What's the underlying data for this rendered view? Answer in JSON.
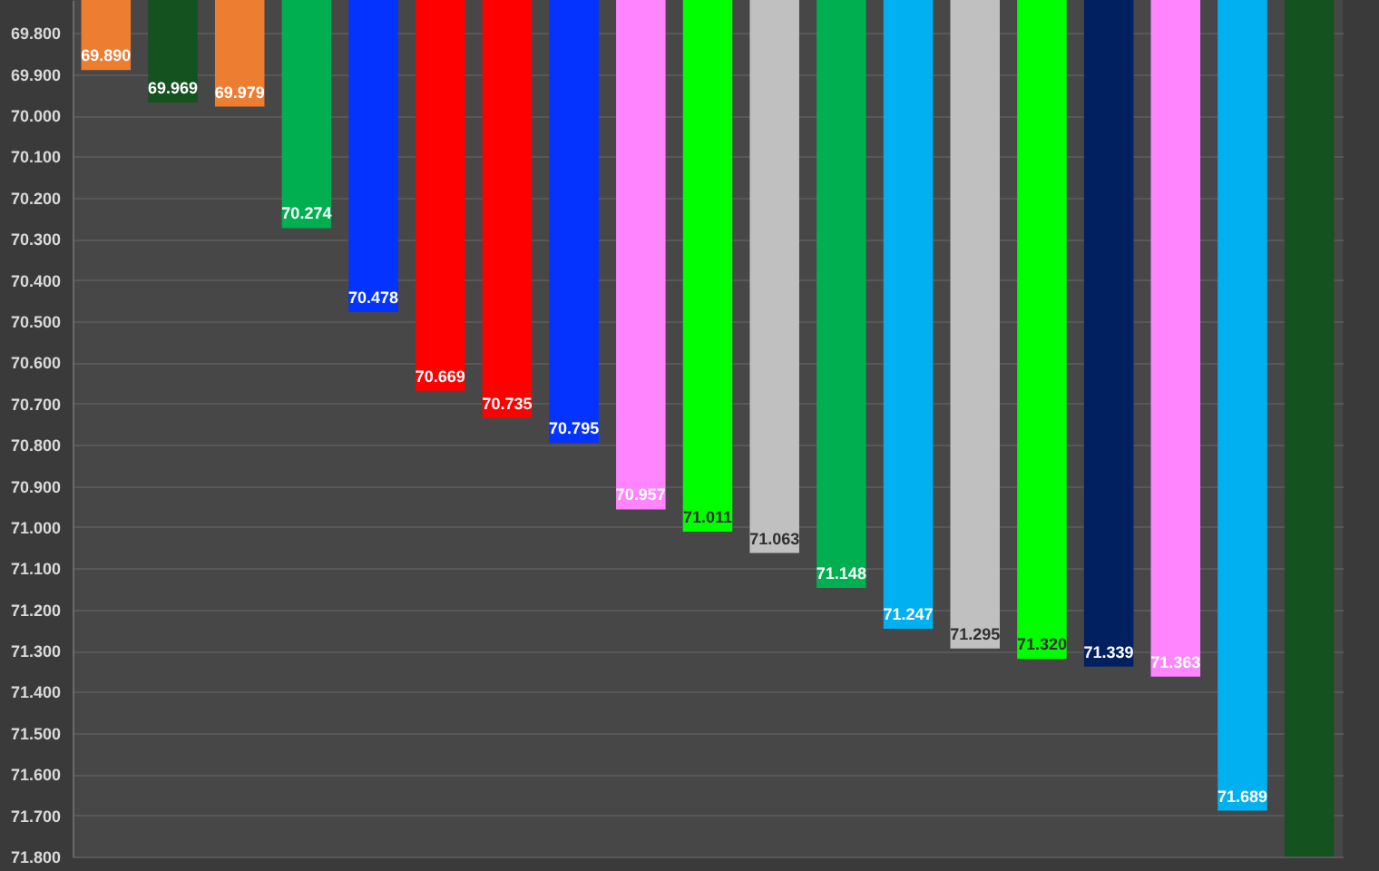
{
  "chart_data": {
    "type": "bar",
    "categories": [
      null,
      null,
      null,
      null,
      null,
      null,
      null,
      null,
      null,
      null,
      null,
      null,
      null,
      null,
      null,
      null,
      null,
      null,
      null
    ],
    "values": [
      69.89,
      69.969,
      69.979,
      70.274,
      70.478,
      70.669,
      70.735,
      70.795,
      70.957,
      71.011,
      71.063,
      71.148,
      71.247,
      71.295,
      71.32,
      71.339,
      71.363,
      71.689,
      71.8
    ],
    "colors": [
      "#ed7d31",
      "#145220",
      "#ed7d31",
      "#00b050",
      "#0433ff",
      "#ff0000",
      "#ff0000",
      "#0433ff",
      "#ff85ff",
      "#00ff00",
      "#c0c0c0",
      "#00b050",
      "#00b0f0",
      "#c0c0c0",
      "#00ff00",
      "#002060",
      "#ff85ff",
      "#00b0f0",
      "#145220"
    ],
    "value_labels": [
      "69.890",
      "69.969",
      "69.979",
      "70.274",
      "70.478",
      "70.669",
      "70.735",
      "70.795",
      "70.957",
      "71.011",
      "71.063",
      "71.148",
      "71.247",
      "71.295",
      "71.320",
      "71.339",
      "71.363",
      "71.689",
      null
    ],
    "ylim": [
      71.8,
      69.72
    ],
    "yticks": [
      {
        "value": 69.8,
        "label": "69.800"
      },
      {
        "value": 69.9,
        "label": "69.900"
      },
      {
        "value": 70.0,
        "label": "70.000"
      },
      {
        "value": 70.1,
        "label": "70.100"
      },
      {
        "value": 70.2,
        "label": "70.200"
      },
      {
        "value": 70.3,
        "label": "70.300"
      },
      {
        "value": 70.4,
        "label": "70.400"
      },
      {
        "value": 70.5,
        "label": "70.500"
      },
      {
        "value": 70.6,
        "label": "70.600"
      },
      {
        "value": 70.7,
        "label": "70.700"
      },
      {
        "value": 70.8,
        "label": "70.800"
      },
      {
        "value": 70.9,
        "label": "70.900"
      },
      {
        "value": 71.0,
        "label": "71.000"
      },
      {
        "value": 71.1,
        "label": "71.100"
      },
      {
        "value": 71.2,
        "label": "71.200"
      },
      {
        "value": 71.3,
        "label": "71.300"
      },
      {
        "value": 71.4,
        "label": "71.400"
      },
      {
        "value": 71.5,
        "label": "71.500"
      },
      {
        "value": 71.6,
        "label": "71.600"
      },
      {
        "value": 71.7,
        "label": "71.700"
      },
      {
        "value": 71.8,
        "label": "71.800"
      }
    ],
    "grid": "y",
    "tick_labels": "y"
  }
}
